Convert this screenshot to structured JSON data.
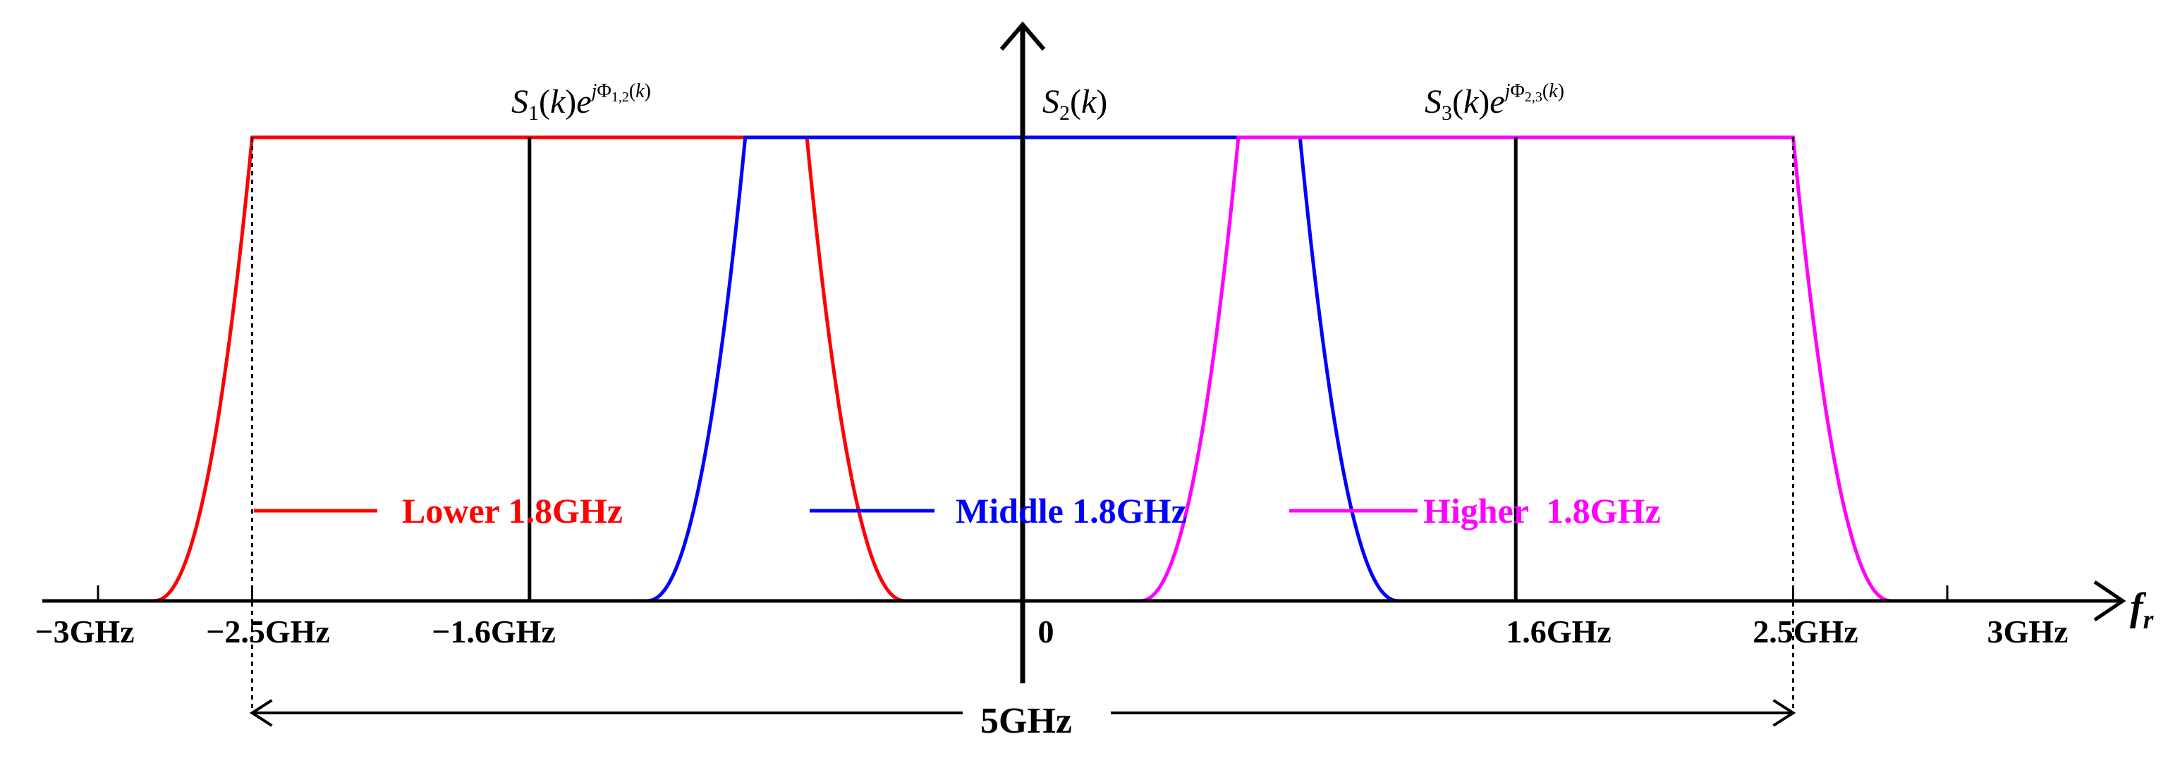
{
  "chart_data": {
    "type": "diagram",
    "x_axis": {
      "label_italic": "f",
      "label_sub": "r",
      "ticks": [
        {
          "value": -3.0,
          "label": "−3GHz"
        },
        {
          "value": -2.5,
          "label": "−2.5GHz"
        },
        {
          "value": -1.6,
          "label": "−1.6GHz"
        },
        {
          "value": 0.0,
          "label": "0"
        },
        {
          "value": 1.6,
          "label": "1.6GHz"
        },
        {
          "value": 2.5,
          "label": "2.5GHz"
        },
        {
          "value": 3.0,
          "label": "3GHz"
        }
      ]
    },
    "series": [
      {
        "name": "Lower 1.8GHz",
        "color": "#ff0000",
        "band": [
          -2.5,
          -0.7
        ],
        "spectrum": {
          "S": "S",
          "sub": "1",
          "k": "k",
          "exp_j": "j",
          "exp_phi": "Φ",
          "exp_sub": "1,2",
          "exp_k": "k"
        }
      },
      {
        "name": "Middle 1.8GHz",
        "color": "#0000ff",
        "band": [
          -0.9,
          0.9
        ],
        "spectrum": {
          "S": "S",
          "sub": "2",
          "k": "k"
        }
      },
      {
        "name": "Higher  1.8GHz",
        "color": "#ff00ff",
        "band": [
          0.7,
          2.5
        ],
        "spectrum": {
          "S": "S",
          "sub": "3",
          "k": "k",
          "exp_j": "j",
          "exp_phi": "Φ",
          "exp_sub": "2,3",
          "exp_k": "k"
        }
      }
    ],
    "center_markers": [
      -1.6,
      0.0,
      1.6
    ],
    "span_annotation": {
      "from": -2.5,
      "to": 2.5,
      "label": "5GHz"
    }
  }
}
